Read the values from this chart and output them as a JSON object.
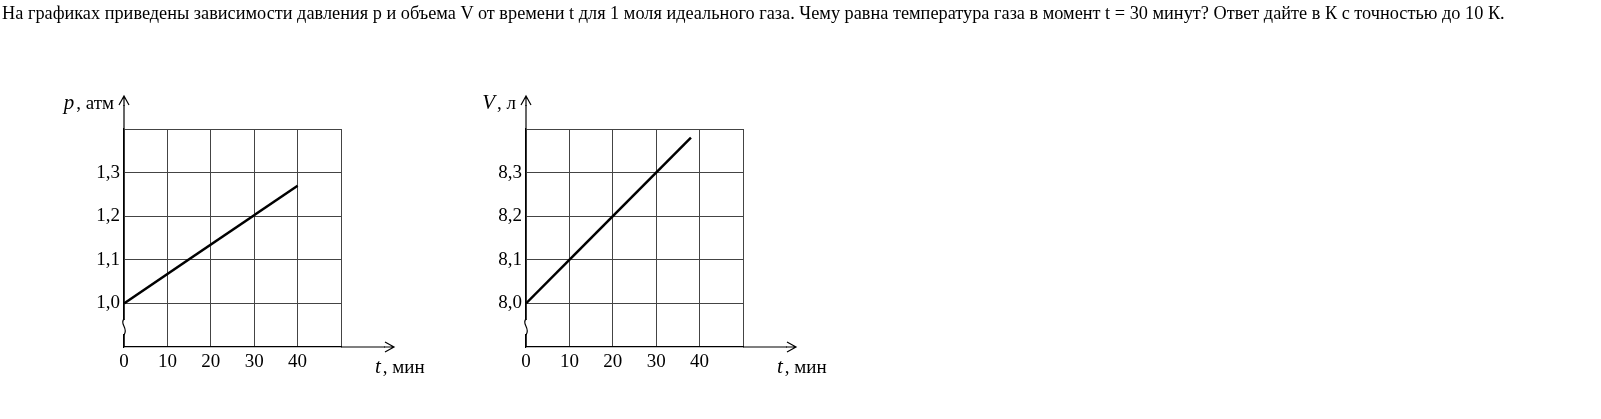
{
  "chart_data": [
    {
      "type": "line",
      "title": "На графиках приведены зависимости давления p и объема V от времени t для 1 моля идеального газа. Чему равна температура газа в момент t = 30 минут? Ответ дайте в К с точностью до 10 К.",
      "xlabel": "t, мин",
      "ylabel": "p, атм",
      "xlim": [
        0,
        50
      ],
      "ylim": [
        0.9,
        1.4
      ],
      "xticks": [
        0,
        10,
        20,
        30,
        40,
        {
          "value": 50,
          "label": null
        }
      ],
      "yticks": [
        {
          "value": 1.0,
          "label": "1,0"
        },
        {
          "value": 1.1,
          "label": "1,1"
        },
        {
          "value": 1.2,
          "label": "1,2"
        },
        {
          "value": 1.3,
          "label": "1,3"
        },
        {
          "value": 1.4,
          "label": null
        }
      ],
      "grid": true,
      "legend": false,
      "marker": "none",
      "series": [
        {
          "color": "#000000",
          "x": [
            0,
            40
          ],
          "values": [
            1.0,
            1.27
          ]
        }
      ]
    },
    {
      "type": "line",
      "xlabel": "t, мин",
      "ylabel": "V, л",
      "xlim": [
        0,
        50
      ],
      "ylim": [
        7.9,
        8.4
      ],
      "xticks": [
        0,
        10,
        20,
        30,
        40,
        {
          "value": 50,
          "label": null
        }
      ],
      "yticks": [
        {
          "value": 8.0,
          "label": "8,0"
        },
        {
          "value": 8.1,
          "label": "8,1"
        },
        {
          "value": 8.2,
          "label": "8,2"
        },
        {
          "value": 8.3,
          "label": "8,3"
        },
        {
          "value": 8.4,
          "label": null
        }
      ],
      "grid": true,
      "legend": false,
      "marker": "none",
      "series": [
        {
          "color": "#000000",
          "x": [
            0,
            38
          ],
          "values": [
            8.0,
            8.38
          ]
        }
      ]
    }
  ]
}
